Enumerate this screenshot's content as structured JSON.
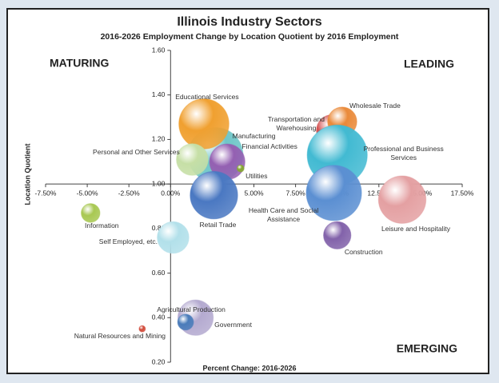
{
  "chart_data": {
    "type": "bubble",
    "title": "Illinois Industry Sectors",
    "subtitle": "2016-2026 Employment Change by Location Quotient by 2016 Employment",
    "x_label": "Percent Change: 2016-2026",
    "y_label": "Location Quotient",
    "quadrant_labels": {
      "top_left": "MATURING",
      "top_right": "LEADING",
      "bottom_right": "EMERGING"
    },
    "xlim": [
      -7.5,
      17.5
    ],
    "ylim": [
      0.2,
      1.6
    ],
    "xticks": [
      {
        "value": -7.5,
        "label": "-7.50%"
      },
      {
        "value": -5,
        "label": "-5.00%"
      },
      {
        "value": -2.5,
        "label": "-2.50%"
      },
      {
        "value": 0,
        "label": "0.00%"
      },
      {
        "value": 2.5,
        "label": "2.50%"
      },
      {
        "value": 5,
        "label": "5.00%"
      },
      {
        "value": 7.5,
        "label": "7.50%"
      },
      {
        "value": 10,
        "label": "10.00%"
      },
      {
        "value": 12.5,
        "label": "12.50%"
      },
      {
        "value": 15,
        "label": "15.00%"
      },
      {
        "value": 17.5,
        "label": "17.50%"
      }
    ],
    "yticks": [
      {
        "value": 0.2,
        "label": "0.20"
      },
      {
        "value": 0.4,
        "label": "0.40"
      },
      {
        "value": 0.6,
        "label": "0.60"
      },
      {
        "value": 0.8,
        "label": "0.80"
      },
      {
        "value": 1.0,
        "label": "1.00"
      },
      {
        "value": 1.2,
        "label": "1.20"
      },
      {
        "value": 1.4,
        "label": "1.40"
      },
      {
        "value": 1.6,
        "label": "1.60"
      }
    ],
    "series": [
      {
        "name": "Manufacturing",
        "color": "#6fc6c8",
        "x": [
          2.7
        ],
        "values": [
          1.13
        ],
        "sizes": [
          600
        ]
      },
      {
        "name": "Educational Services",
        "color": "#f0a030",
        "x": [
          2.0
        ],
        "values": [
          1.27
        ],
        "sizes": [
          500
        ]
      },
      {
        "name": "Personal and Other Services",
        "color": "#c6dfa6",
        "x": [
          1.3
        ],
        "values": [
          1.11
        ],
        "sizes": [
          200
        ]
      },
      {
        "name": "Financial Activities",
        "color": "#9460b2",
        "x": [
          3.4
        ],
        "values": [
          1.1
        ],
        "sizes": [
          250
        ]
      },
      {
        "name": "Utilities",
        "color": "#86a832",
        "x": [
          4.2
        ],
        "values": [
          1.07
        ],
        "sizes": [
          10
        ]
      },
      {
        "name": "Retail Trade",
        "color": "#4a78c2",
        "x": [
          2.6
        ],
        "values": [
          0.95
        ],
        "sizes": [
          450
        ]
      },
      {
        "name": "Transportation and Warehousing",
        "color": "#d45252",
        "x": [
          9.7
        ],
        "values": [
          1.24
        ],
        "sizes": [
          200
        ]
      },
      {
        "name": "Wholesale Trade",
        "color": "#ea8a3a",
        "x": [
          10.3
        ],
        "values": [
          1.28
        ],
        "sizes": [
          170
        ]
      },
      {
        "name": "Professional and Business Services",
        "color": "#42bad2",
        "x": [
          10.0
        ],
        "values": [
          1.13
        ],
        "sizes": [
          720
        ]
      },
      {
        "name": "Health Care and Social Assistance",
        "color": "#5b8fd2",
        "x": [
          9.8
        ],
        "values": [
          0.96
        ],
        "sizes": [
          610
        ]
      },
      {
        "name": "Leisure and Hospitality",
        "color": "#e4a0a2",
        "x": [
          13.9
        ],
        "values": [
          0.93
        ],
        "sizes": [
          450
        ]
      },
      {
        "name": "Construction",
        "color": "#8262aa",
        "x": [
          10.0
        ],
        "values": [
          0.77
        ],
        "sizes": [
          150
        ]
      },
      {
        "name": "Information",
        "color": "#a8c852",
        "x": [
          -4.8
        ],
        "values": [
          0.87
        ],
        "sizes": [
          70
        ]
      },
      {
        "name": "Self Employed, etc.",
        "color": "#b2e0ea",
        "x": [
          0.15
        ],
        "values": [
          0.76
        ],
        "sizes": [
          200
        ]
      },
      {
        "name": "Government",
        "color": "#b4aad0",
        "x": [
          1.5
        ],
        "values": [
          0.4
        ],
        "sizes": [
          250
        ]
      },
      {
        "name": "Agricultural Production",
        "color": "#4a7cba",
        "x": [
          0.9
        ],
        "values": [
          0.38
        ],
        "sizes": [
          50
        ]
      },
      {
        "name": "Natural Resources and Mining",
        "color": "#d24a3a",
        "x": [
          -1.7
        ],
        "values": [
          0.35
        ],
        "sizes": [
          8
        ]
      }
    ]
  }
}
